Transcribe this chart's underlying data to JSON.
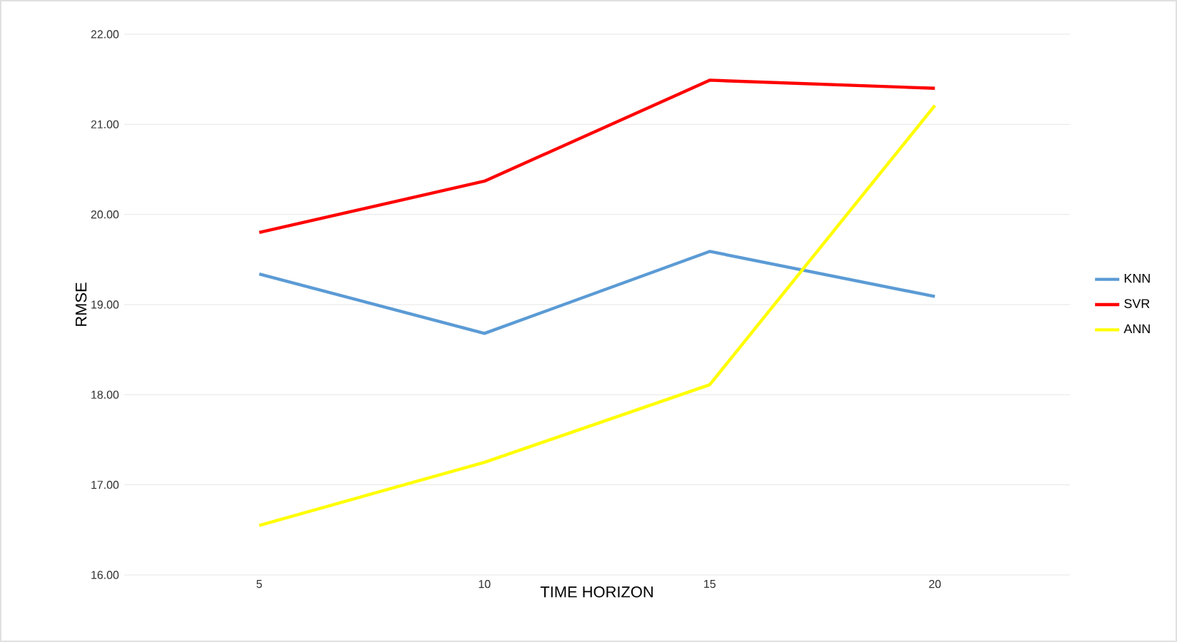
{
  "chart_data": {
    "type": "line",
    "xlabel": "TIME HORIZON",
    "ylabel": "RMSE",
    "categories": [
      "5",
      "10",
      "15",
      "20"
    ],
    "series": [
      {
        "name": "KNN",
        "color": "#5b9bd5",
        "values": [
          19.34,
          18.68,
          19.59,
          19.09
        ]
      },
      {
        "name": "SVR",
        "color": "#ff0000",
        "values": [
          19.8,
          20.37,
          21.49,
          21.4
        ]
      },
      {
        "name": "ANN",
        "color": "#ffff00",
        "values": [
          16.55,
          17.25,
          18.11,
          21.21
        ]
      }
    ],
    "ylim": [
      16,
      22
    ],
    "yticks": [
      {
        "value": 16,
        "label": "16.00"
      },
      {
        "value": 17,
        "label": "17.00"
      },
      {
        "value": 18,
        "label": "18.00"
      },
      {
        "value": 19,
        "label": "19.00"
      },
      {
        "value": 20,
        "label": "20.00"
      },
      {
        "value": 21,
        "label": "21.00"
      },
      {
        "value": 22,
        "label": "22.00"
      }
    ],
    "grid": "y",
    "legend": "right",
    "marker": "none",
    "line_style": "solid"
  }
}
